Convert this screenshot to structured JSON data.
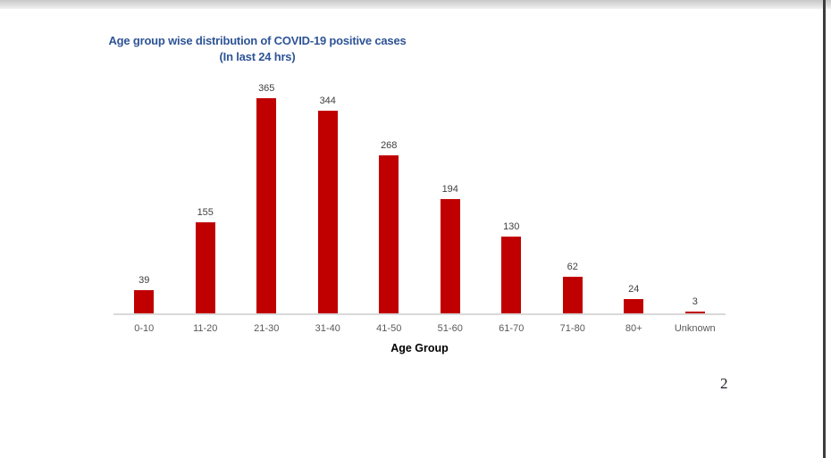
{
  "page": {
    "number": "2"
  },
  "chart": {
    "title_line1": "Age group wise distribution of COVID-19 positive cases",
    "title_line2": "(In last 24 hrs)",
    "xlabel": "Age Group"
  },
  "chart_data": {
    "type": "bar",
    "categories": [
      "0-10",
      "11-20",
      "21-30",
      "31-40",
      "41-50",
      "51-60",
      "61-70",
      "71-80",
      "80+",
      "Unknown"
    ],
    "values": [
      39,
      155,
      365,
      344,
      268,
      194,
      130,
      62,
      24,
      3
    ],
    "title": "Age group wise distribution of COVID-19 positive cases (In last 24 hrs)",
    "xlabel": "Age Group",
    "ylabel": "",
    "ylim": [
      0,
      400
    ],
    "grid": false,
    "legend": false,
    "value_labels": true
  },
  "colors": {
    "bar": "#C00000",
    "title": "#2E5496",
    "value_label": "#404040",
    "tick_label": "#595959",
    "axis_title": "#000000",
    "baseline": "#D9D9D9",
    "right_border": "#3D3D3D",
    "page_number": "#1A1A24"
  }
}
